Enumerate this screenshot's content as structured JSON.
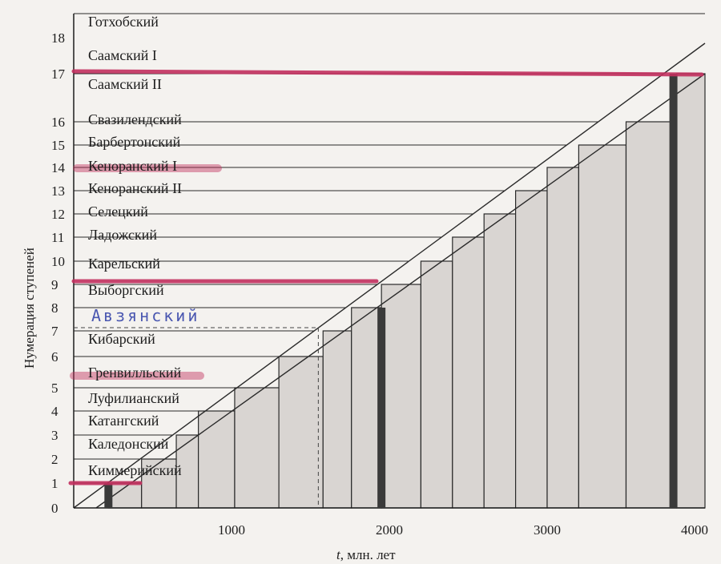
{
  "chart_data": {
    "type": "bar",
    "x_axis_label_prefix": "t",
    "x_axis_label_suffix": ", млн. лет",
    "y_axis_label": "Нумерация ступеней",
    "x_ticks": [
      1000,
      2000,
      3000,
      4000
    ],
    "y_ticks": [
      0,
      1,
      2,
      3,
      4,
      5,
      6,
      7,
      8,
      9,
      10,
      11,
      12,
      13,
      14,
      15,
      16,
      17,
      18
    ],
    "xlim": [
      0,
      4000
    ],
    "ylim": [
      0,
      18.5
    ],
    "stages": [
      {
        "n": 1,
        "name": "Киммерийский"
      },
      {
        "n": 2,
        "name": "Каледонский"
      },
      {
        "n": 3,
        "name": "Катангский"
      },
      {
        "n": 4,
        "name": "Луфилианский"
      },
      {
        "n": 5,
        "name": "Гренвилльский"
      },
      {
        "n": 6,
        "name": "Кибарский"
      },
      {
        "n": 7,
        "name": "Авзянский"
      },
      {
        "n": 8,
        "name": "Выборгский"
      },
      {
        "n": 9,
        "name": "Карельский"
      },
      {
        "n": 10,
        "name": "Ладожский"
      },
      {
        "n": 11,
        "name": "Селецкий"
      },
      {
        "n": 12,
        "name": "Кеноранский II"
      },
      {
        "n": 13,
        "name": "Кеноранский I"
      },
      {
        "n": 14,
        "name": "Барбертонский"
      },
      {
        "n": 15,
        "name": "Свазилендский"
      },
      {
        "n": 16,
        "name": "Саамский II"
      },
      {
        "n": 17,
        "name": "Саамский I"
      },
      {
        "n": 18,
        "name": "Готхобский"
      }
    ],
    "bars": [
      {
        "x0": 220,
        "x1": 430,
        "y": 1
      },
      {
        "x0": 430,
        "x1": 650,
        "y": 2
      },
      {
        "x0": 650,
        "x1": 790,
        "y": 3
      },
      {
        "x0": 790,
        "x1": 1020,
        "y": 4
      },
      {
        "x0": 1020,
        "x1": 1300,
        "y": 5
      },
      {
        "x0": 1300,
        "x1": 1580,
        "y": 6
      },
      {
        "x0": 1580,
        "x1": 1760,
        "y": 7
      },
      {
        "x0": 1760,
        "x1": 1950,
        "y": 8
      },
      {
        "x0": 1950,
        "x1": 2200,
        "y": 9
      },
      {
        "x0": 2200,
        "x1": 2400,
        "y": 10
      },
      {
        "x0": 2400,
        "x1": 2600,
        "y": 11
      },
      {
        "x0": 2600,
        "x1": 2800,
        "y": 12
      },
      {
        "x0": 2800,
        "x1": 3000,
        "y": 13
      },
      {
        "x0": 3000,
        "x1": 3200,
        "y": 14
      },
      {
        "x0": 3200,
        "x1": 3500,
        "y": 15
      },
      {
        "x0": 3500,
        "x1": 3820,
        "y": 16
      },
      {
        "x0": 3820,
        "x1": 4000,
        "y": 17
      }
    ],
    "thick_markers": [
      {
        "x": 220,
        "y": 1
      },
      {
        "x": 1950,
        "y": 8
      },
      {
        "x": 3800,
        "y": 17
      }
    ],
    "dashed_guide": {
      "x": 1550,
      "y": 7
    },
    "highlighted_stages": [
      1,
      5,
      8,
      13,
      17
    ],
    "grid": false
  }
}
